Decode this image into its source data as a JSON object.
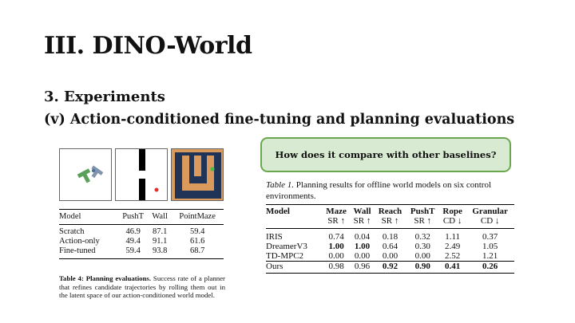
{
  "slide": {
    "title": "III. DINO-World",
    "section": "3. Experiments",
    "subsection": "(v) Action-conditioned fine-tuning and planning evaluations"
  },
  "callout": {
    "text": "How does it compare with other baselines?"
  },
  "table4": {
    "columns": [
      "Model",
      "PushT",
      "Wall",
      "PointMaze"
    ],
    "rows": [
      [
        "Scratch",
        "46.9",
        "87.1",
        "59.4"
      ],
      [
        "Action-only",
        "49.4",
        "91.1",
        "61.6"
      ],
      [
        "Fine-tuned",
        "59.4",
        "93.8",
        "68.7"
      ]
    ],
    "caption_lead": "Table 4:   Planning evaluations.",
    "caption_body": "Success rate of a planner that refines candidate trajectories by rolling them out in the latent space of our action-conditioned world model."
  },
  "table1": {
    "caption_lead": "Table 1.",
    "caption_body": "Planning results for offline world models on six control environments.",
    "columns": [
      "Model",
      "Maze",
      "Wall",
      "Reach",
      "PushT",
      "Rope",
      "Granular"
    ],
    "metrics": [
      "",
      "SR ↑",
      "SR ↑",
      "SR ↑",
      "SR ↑",
      "CD ↓",
      "CD ↓"
    ],
    "rows": [
      [
        "IRIS",
        "0.74",
        "0.04",
        "0.18",
        "0.32",
        "1.11",
        "0.37"
      ],
      [
        "DreamerV3",
        "1.00",
        "1.00",
        "0.64",
        "0.30",
        "2.49",
        "1.05"
      ],
      [
        "TD-MPC2",
        "0.00",
        "0.00",
        "0.00",
        "0.00",
        "2.52",
        "1.21"
      ],
      [
        "Ours",
        "0.98",
        "0.96",
        "0.92",
        "0.90",
        "0.41",
        "0.26"
      ]
    ]
  },
  "colors": {
    "callout_fill": "#d9ead3",
    "callout_border": "#6aa84f",
    "maze_floor": "#d99a5b",
    "maze_wall": "#1f3456"
  },
  "thumbnails": [
    "pusht-env-image",
    "wall-env-image",
    "pointmaze-env-image"
  ]
}
